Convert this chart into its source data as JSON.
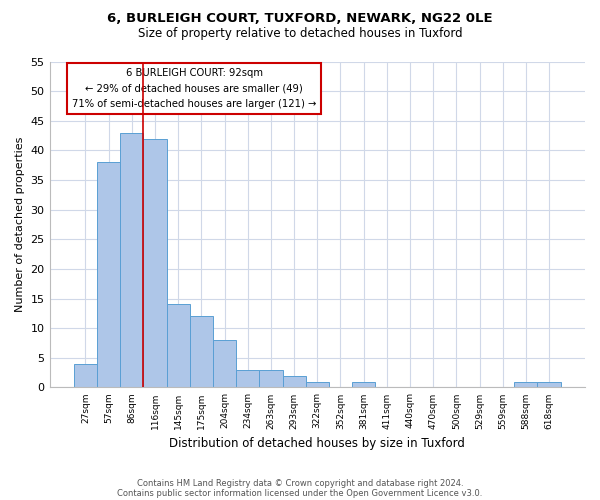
{
  "title": "6, BURLEIGH COURT, TUXFORD, NEWARK, NG22 0LE",
  "subtitle": "Size of property relative to detached houses in Tuxford",
  "xlabel": "Distribution of detached houses by size in Tuxford",
  "ylabel": "Number of detached properties",
  "footnote1": "Contains HM Land Registry data © Crown copyright and database right 2024.",
  "footnote2": "Contains public sector information licensed under the Open Government Licence v3.0.",
  "bar_labels": [
    "27sqm",
    "57sqm",
    "86sqm",
    "116sqm",
    "145sqm",
    "175sqm",
    "204sqm",
    "234sqm",
    "263sqm",
    "293sqm",
    "322sqm",
    "352sqm",
    "381sqm",
    "411sqm",
    "440sqm",
    "470sqm",
    "500sqm",
    "529sqm",
    "559sqm",
    "588sqm",
    "618sqm"
  ],
  "bar_values": [
    4,
    38,
    43,
    42,
    14,
    12,
    8,
    3,
    3,
    2,
    1,
    0,
    1,
    0,
    0,
    0,
    0,
    0,
    0,
    1,
    1
  ],
  "bar_color": "#aec6e8",
  "bar_edge_color": "#5a9fd4",
  "property_line_color": "#cc0000",
  "annotation_title": "6 BURLEIGH COURT: 92sqm",
  "annotation_line1": "← 29% of detached houses are smaller (49)",
  "annotation_line2": "71% of semi-detached houses are larger (121) →",
  "annotation_box_color": "#ffffff",
  "annotation_box_edge": "#cc0000",
  "ylim": [
    0,
    55
  ],
  "yticks": [
    0,
    5,
    10,
    15,
    20,
    25,
    30,
    35,
    40,
    45,
    50,
    55
  ],
  "background_color": "#ffffff",
  "grid_color": "#d0d8e8"
}
